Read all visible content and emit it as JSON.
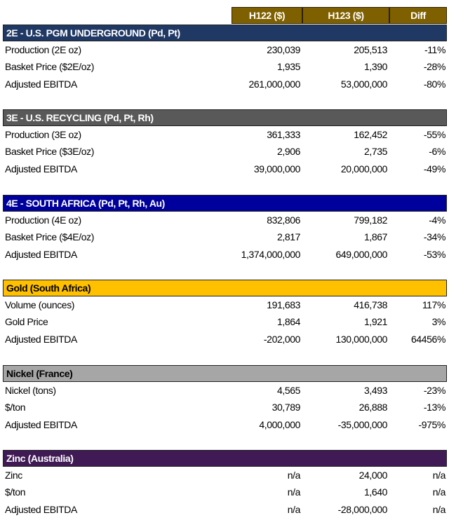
{
  "columns": [
    "H122 ($)",
    "H123 ($)",
    "Diff"
  ],
  "colors": {
    "column_header": "#7f6000"
  },
  "sections": [
    {
      "title": "2E - U.S. PGM UNDERGROUND (Pd, Pt)",
      "bg": "#1f3864",
      "fg": "#ffffff",
      "rows": [
        [
          "Production (2E oz)",
          "230,039",
          "205,513",
          "-11%"
        ],
        [
          "Basket Price ($2E/oz)",
          "1,935",
          "1,390",
          "-28%"
        ],
        [
          "Adjusted EBITDA",
          "261,000,000",
          "53,000,000",
          "-80%"
        ]
      ]
    },
    {
      "title": "3E - U.S. RECYCLING (Pd, Pt, Rh)",
      "bg": "#595959",
      "fg": "#ffffff",
      "rows": [
        [
          "Production (3E oz)",
          "361,333",
          "162,452",
          "-55%"
        ],
        [
          "Basket Price ($3E/oz)",
          "2,906",
          "2,735",
          "-6%"
        ],
        [
          "Adjusted EBITDA",
          "39,000,000",
          "20,000,000",
          "-49%"
        ]
      ]
    },
    {
      "title": "4E - SOUTH AFRICA (Pd, Pt, Rh, Au)",
      "bg": "#00009c",
      "fg": "#ffffff",
      "rows": [
        [
          "Production (4E oz)",
          "832,806",
          "799,182",
          "-4%"
        ],
        [
          "Basket Price ($4E/oz)",
          "2,817",
          "1,867",
          "-34%"
        ],
        [
          "Adjusted EBITDA",
          "1,374,000,000",
          "649,000,000",
          "-53%"
        ]
      ]
    },
    {
      "title": "Gold (South Africa)",
      "bg": "#ffc000",
      "fg": "#000000",
      "rows": [
        [
          "Volume (ounces)",
          "191,683",
          "416,738",
          "117%"
        ],
        [
          "Gold Price",
          "1,864",
          "1,921",
          "3%"
        ],
        [
          "Adjusted EBITDA",
          "-202,000",
          "130,000,000",
          "64456%"
        ]
      ]
    },
    {
      "title": "Nickel (France)",
      "bg": "#a6a6a6",
      "fg": "#000000",
      "rows": [
        [
          "Nickel (tons)",
          "4,565",
          "3,493",
          "-23%"
        ],
        [
          "$/ton",
          "30,789",
          "26,888",
          "-13%"
        ],
        [
          "Adjusted EBITDA",
          "4,000,000",
          "-35,000,000",
          "-975%"
        ]
      ]
    },
    {
      "title": "Zinc (Australia)",
      "bg": "#3f1a55",
      "fg": "#ffffff",
      "rows": [
        [
          "Zinc",
          "n/a",
          "24,000",
          "n/a"
        ],
        [
          "$/ton",
          "n/a",
          "1,640",
          "n/a"
        ],
        [
          "Adjusted EBITDA",
          "n/a",
          "-28,000,000",
          "n/a"
        ]
      ]
    }
  ]
}
